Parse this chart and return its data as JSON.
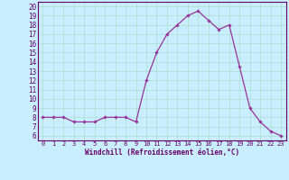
{
  "x": [
    0,
    1,
    2,
    3,
    4,
    5,
    6,
    7,
    8,
    9,
    10,
    11,
    12,
    13,
    14,
    15,
    16,
    17,
    18,
    19,
    20,
    21,
    22,
    23
  ],
  "y": [
    8,
    8,
    8,
    7.5,
    7.5,
    7.5,
    8,
    8,
    8,
    7.5,
    12,
    15,
    17,
    18,
    19,
    19.5,
    18.5,
    17.5,
    18,
    13.5,
    9,
    7.5,
    6.5,
    6
  ],
  "line_color": "#993399",
  "marker_color": "#993399",
  "bg_color": "#c8eeff",
  "grid_color": "#aaddcc",
  "xlabel": "Windchill (Refroidissement éolien,°C)",
  "ylabel_ticks": [
    6,
    7,
    8,
    9,
    10,
    11,
    12,
    13,
    14,
    15,
    16,
    17,
    18,
    19,
    20
  ],
  "xlim": [
    -0.5,
    23.5
  ],
  "ylim": [
    5.5,
    20.5
  ],
  "xticks": [
    0,
    1,
    2,
    3,
    4,
    5,
    6,
    7,
    8,
    9,
    10,
    11,
    12,
    13,
    14,
    15,
    16,
    17,
    18,
    19,
    20,
    21,
    22,
    23
  ],
  "xticklabels": [
    "0",
    "1",
    "2",
    "3",
    "4",
    "5",
    "6",
    "7",
    "8",
    "9",
    "10",
    "11",
    "12",
    "13",
    "14",
    "15",
    "16",
    "17",
    "18",
    "19",
    "20",
    "21",
    "22",
    "23"
  ]
}
